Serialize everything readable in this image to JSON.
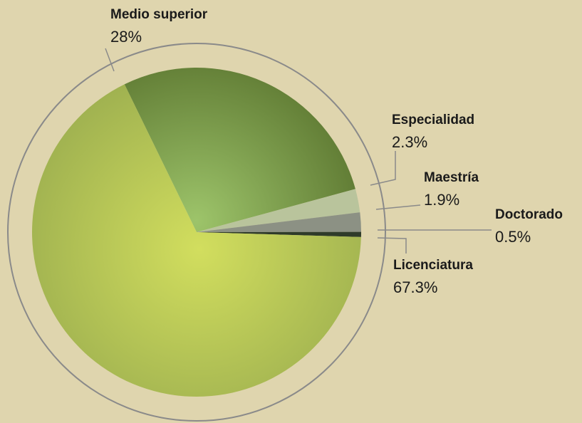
{
  "chart_data": {
    "type": "pie",
    "categories": [
      "Medio superior",
      "Especialidad",
      "Maestría",
      "Doctorado",
      "Licenciatura"
    ],
    "values": [
      28,
      2.3,
      1.9,
      0.5,
      67.3
    ],
    "value_labels": [
      "28%",
      "2.3%",
      "1.9%",
      "0.5%",
      "67.3%"
    ],
    "colors": [
      "#6f8a3e",
      "#b9c49c",
      "#8c9184",
      "#2f3b2a",
      "#b6c65a"
    ]
  }
}
